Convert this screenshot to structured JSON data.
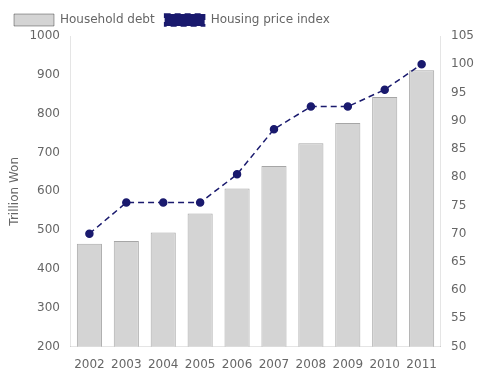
{
  "chart_data": {
    "type": "bar",
    "categories": [
      "2002",
      "2003",
      "2004",
      "2005",
      "2006",
      "2007",
      "2008",
      "2009",
      "2010",
      "2011"
    ],
    "series": [
      {
        "name": "Household debt",
        "type": "bar",
        "color": "#d4d4d4",
        "values": [
          465,
          472,
          494,
          543,
          607,
          665,
          724,
          776,
          843,
          912
        ],
        "data_labels": true
      },
      {
        "name": "Housing price index",
        "type": "line",
        "color": "#1a1a6e",
        "axis": "y2",
        "marker": "circle",
        "line_style": "dashed",
        "values": [
          70.0,
          75.5,
          75.5,
          75.5,
          80.5,
          88.5,
          92.5,
          92.5,
          95.5,
          100.0
        ]
      }
    ],
    "y_label": "Trillion Won",
    "ylim": [
      200,
      1000
    ],
    "yticks": [
      200,
      300,
      400,
      500,
      600,
      700,
      800,
      900,
      1000
    ],
    "y2lim": [
      50,
      105
    ],
    "y2ticks": [
      50,
      55,
      60,
      65,
      70,
      75,
      80,
      85,
      90,
      95,
      100,
      105
    ],
    "grid": false,
    "legend": "upper left"
  }
}
